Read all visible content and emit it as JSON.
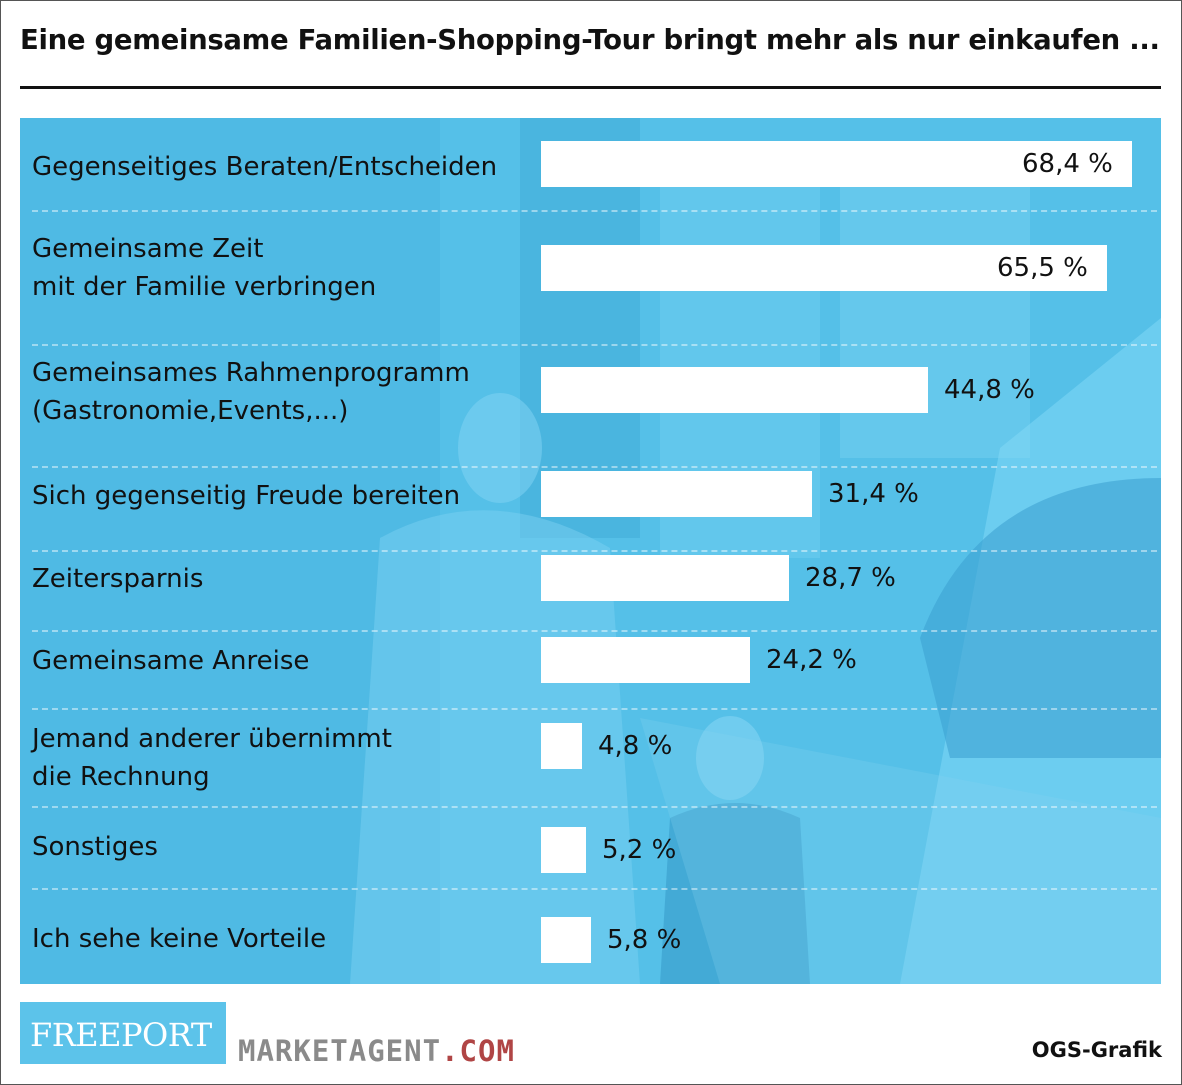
{
  "title": "Eine gemeinsame Familien-Shopping-Tour bringt mehr als nur einkaufen ...",
  "chart_data": {
    "type": "bar",
    "orientation": "horizontal",
    "title": "Eine gemeinsame Familien-Shopping-Tour bringt mehr als nur einkaufen ...",
    "categories": [
      [
        "Gegenseitiges Beraten/Entscheiden"
      ],
      [
        "Gemeinsame Zeit",
        "mit der Familie verbringen"
      ],
      [
        "Gemeinsames Rahmenprogramm",
        "(Gastronomie,Events,...)"
      ],
      [
        "Sich gegenseitig Freude bereiten"
      ],
      [
        "Zeitersparnis"
      ],
      [
        "Gemeinsame Anreise"
      ],
      [
        "Jemand anderer übernimmt",
        "die Rechnung"
      ],
      [
        "Sonstiges"
      ],
      [
        "Ich sehe keine Vorteile"
      ]
    ],
    "values": [
      68.4,
      65.5,
      44.8,
      31.4,
      28.7,
      24.2,
      4.8,
      5.2,
      5.8
    ],
    "value_labels": [
      "68,4 %",
      "65,5 %",
      "44,8 %",
      "31,4 %",
      "28,7 %",
      "24,2 %",
      "4,8 %",
      "5,2 %",
      "5,8 %"
    ],
    "unit": "%",
    "bar_color": "#ffffff",
    "background_color": "#5cc3ea",
    "grid": false,
    "legend": "none"
  },
  "footer": {
    "logo_text": "FREEPORT",
    "brand_main": "MARKETAGENT",
    "brand_suffix": ".COM",
    "credit": "OGS-Grafik"
  }
}
